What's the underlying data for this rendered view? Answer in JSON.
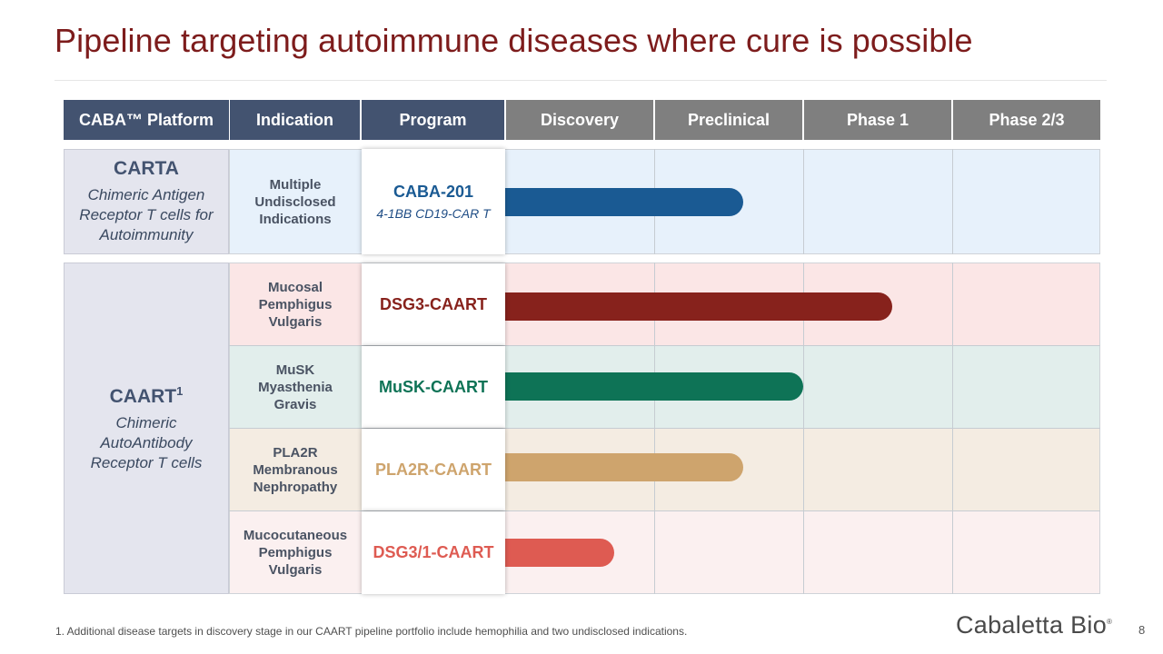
{
  "title": "Pipeline targeting autoimmune diseases where cure is possible",
  "headers": {
    "platform": "CABA™ Platform",
    "indication": "Indication",
    "program": "Program",
    "discovery": "Discovery",
    "preclinical": "Preclinical",
    "phase1": "Phase 1",
    "phase23": "Phase 2/3"
  },
  "platforms": {
    "carta": {
      "name": "CARTA",
      "desc_line1": "Chimeric Antigen",
      "desc_line2": "Receptor T cells for",
      "desc_line3": "Autoimmunity"
    },
    "caart": {
      "name": "CAART",
      "footnote_ref": "1",
      "desc_line1": "Chimeric",
      "desc_line2": "AutoAntibody",
      "desc_line3": "Receptor T cells"
    }
  },
  "rows": [
    {
      "indication_line1": "Multiple",
      "indication_line2": "Undisclosed",
      "indication_line3": "Indications",
      "program": "CABA-201",
      "program_sub": "4-1BB CD19-CAR T",
      "color": "#1a5a93",
      "bg": "#e7f1fb",
      "progress_stages": 1.6
    },
    {
      "indication_line1": "Mucosal",
      "indication_line2": "Pemphigus",
      "indication_line3": "Vulgaris",
      "program": "DSG3-CAART",
      "color": "#87221c",
      "bg": "#fbe6e6",
      "progress_stages": 2.6
    },
    {
      "indication_line1": "MuSK",
      "indication_line2": "Myasthenia",
      "indication_line3": "Gravis",
      "program": "MuSK-CAART",
      "color": "#0e7356",
      "bg": "#e2eeec",
      "progress_stages": 2.0
    },
    {
      "indication_line1": "PLA2R",
      "indication_line2": "Membranous",
      "indication_line3": "Nephropathy",
      "program": "PLA2R-CAART",
      "color": "#cea46d",
      "bg": "#f4ece2",
      "progress_stages": 1.6
    },
    {
      "indication_line1": "Mucocutaneous",
      "indication_line2": "Pemphigus",
      "indication_line3": "Vulgaris",
      "program": "DSG3/1-CAART",
      "color": "#de5b52",
      "bg": "#fbf0f0",
      "progress_stages": 0.73
    }
  ],
  "footnote": "1. Additional disease targets in discovery stage in our CAART pipeline portfolio include hemophilia and two undisclosed indications.",
  "logo_text": "Cabaletta Bio",
  "logo_mark": "®",
  "page_number": "8"
}
